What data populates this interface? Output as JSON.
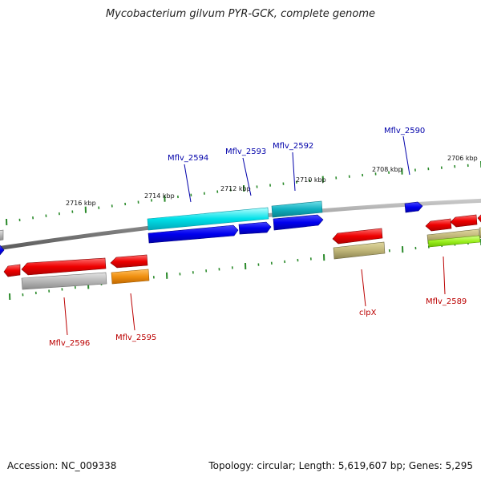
{
  "title": "Mycobacterium gilvum PYR-GCK, complete genome",
  "footer": {
    "accession": "Accession: NC_009338",
    "summary": "Topology: circular; Length: 5,619,607 bp; Genes: 5,295"
  },
  "colors": {
    "backbone": "#8a8a8a",
    "tick": "#2a8a2a",
    "label_forward": "#0000aa",
    "label_reverse": "#bb0000"
  },
  "scale_labels": [
    "2716 kbp",
    "2714 kbp",
    "2712 kbp",
    "2710 kbp",
    "2708 kbp",
    "2706 kbp"
  ],
  "genes": [
    {
      "id": "Mflv_2590",
      "label": "Mflv_2590",
      "strand": "+"
    },
    {
      "id": "Mflv_2592",
      "label": "Mflv_2592",
      "strand": "+"
    },
    {
      "id": "Mflv_2593",
      "label": "Mflv_2593",
      "strand": "+"
    },
    {
      "id": "Mflv_2594",
      "label": "Mflv_2594",
      "strand": "+"
    },
    {
      "id": "Mflv_2596",
      "label": "Mflv_2596",
      "strand": "-"
    },
    {
      "id": "Mflv_2595",
      "label": "Mflv_2595",
      "strand": "-"
    },
    {
      "id": "clpX",
      "label": "clpX",
      "strand": "-"
    },
    {
      "id": "Mflv_2589",
      "label": "Mflv_2589",
      "strand": "-"
    }
  ]
}
